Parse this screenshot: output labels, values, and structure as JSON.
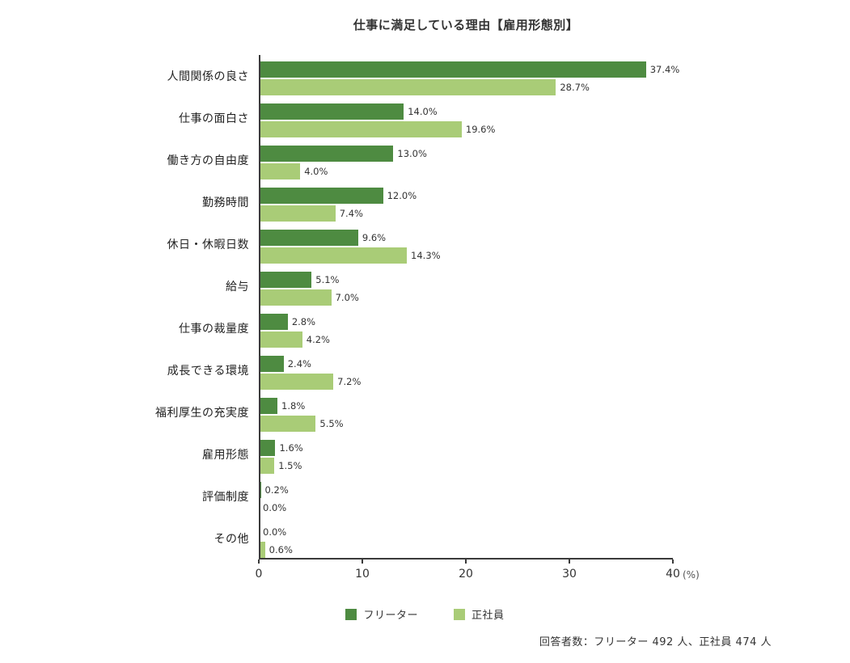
{
  "title": "仕事に満足している理由【雇用形態別】",
  "footnote": "回答者数：フリーター 492 人、正社員 474 人",
  "colors": {
    "freeter_bar": "#4e8b41",
    "seishain_bar": "#a9cc77",
    "axis": "#3a3a3a",
    "text": "#333333"
  },
  "chart_data": {
    "type": "bar",
    "orientation": "horizontal",
    "title": "仕事に満足している理由【雇用形態別】",
    "categories": [
      "人間関係の良さ",
      "仕事の面白さ",
      "働き方の自由度",
      "勤務時間",
      "休日・休暇日数",
      "給与",
      "仕事の裁量度",
      "成長できる環境",
      "福利厚生の充実度",
      "雇用形態",
      "評価制度",
      "その他"
    ],
    "series": [
      {
        "name": "フリーター",
        "color": "#4e8b41",
        "values": [
          37.4,
          14.0,
          13.0,
          12.0,
          9.6,
          5.1,
          2.8,
          2.4,
          1.8,
          1.6,
          0.2,
          0.0
        ]
      },
      {
        "name": "正社員",
        "color": "#a9cc77",
        "values": [
          28.7,
          19.6,
          4.0,
          7.4,
          14.3,
          7.0,
          4.2,
          7.2,
          5.5,
          1.5,
          0.0,
          0.6
        ]
      }
    ],
    "value_suffix": "%",
    "value_decimals": 1,
    "xlim": [
      0,
      40
    ],
    "xticks": [
      0,
      10,
      20,
      30,
      40
    ],
    "x_unit_label": "(%)",
    "grid": false,
    "legend_position": "bottom"
  }
}
